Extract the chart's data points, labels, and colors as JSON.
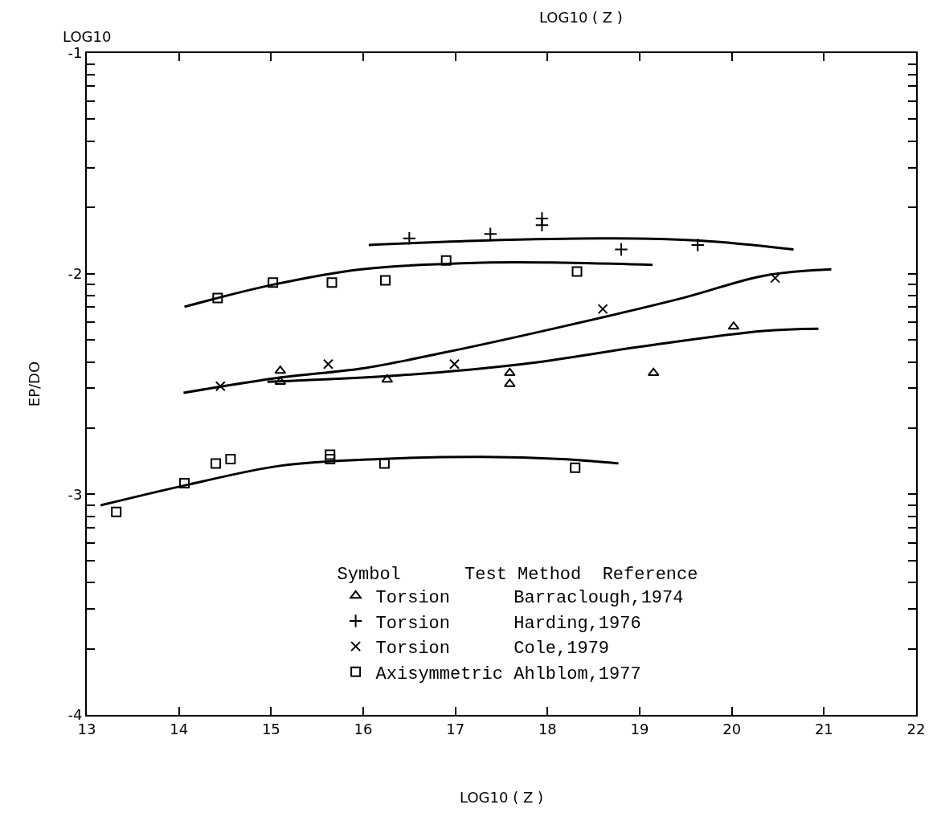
{
  "chart_data": {
    "type": "scatter",
    "title": "LOG10 ( Z )",
    "xlabel": "LOG10 ( Z )",
    "ylabel": "EP/DO",
    "annotations": [
      "LOG10"
    ],
    "legend_title": "Symbol      Test Method  Reference",
    "legend": "bottom right",
    "xlim": [
      13,
      22
    ],
    "xticks": [
      13,
      14,
      15,
      16,
      17,
      18,
      19,
      20,
      21,
      22
    ],
    "ylim": [
      -4,
      -1
    ],
    "yticks": [
      -1,
      {
        "value": -1.05,
        "label": null
      },
      {
        "value": -1.1,
        "label": null
      },
      {
        "value": -1.15,
        "label": null
      },
      {
        "value": -1.22,
        "label": null
      },
      {
        "value": -1.3,
        "label": null
      },
      {
        "value": -1.4,
        "label": null
      },
      {
        "value": -1.52,
        "label": null
      },
      {
        "value": -1.7,
        "label": null
      },
      -2,
      {
        "value": -2.05,
        "label": null
      },
      {
        "value": -2.1,
        "label": null
      },
      {
        "value": -2.15,
        "label": null
      },
      {
        "value": -2.22,
        "label": null
      },
      {
        "value": -2.3,
        "label": null
      },
      {
        "value": -2.4,
        "label": null
      },
      {
        "value": -2.52,
        "label": null
      },
      {
        "value": -2.7,
        "label": null
      },
      -3,
      {
        "value": -3.05,
        "label": null
      },
      {
        "value": -3.1,
        "label": null
      },
      {
        "value": -3.15,
        "label": null
      },
      {
        "value": -3.22,
        "label": null
      },
      {
        "value": -3.3,
        "label": null
      },
      {
        "value": -3.4,
        "label": null
      },
      {
        "value": -3.52,
        "label": null
      },
      {
        "value": -3.7,
        "label": null
      },
      -4
    ],
    "series": [
      {
        "name": "Torsion      Barraclough,1974",
        "color": "#000000",
        "marker": "triangle",
        "x": [
          15.1,
          15.1,
          16.26,
          17.59,
          17.59,
          19.15,
          20.02
        ],
        "values": [
          -2.44,
          -2.49,
          -2.48,
          -2.45,
          -2.5,
          -2.45,
          -2.24
        ]
      },
      {
        "name": "Torsion      Harding,1976",
        "color": "#000000",
        "marker": "cross",
        "x": [
          16.5,
          17.38,
          17.94,
          17.94,
          18.8,
          19.63
        ],
        "values": [
          -1.84,
          -1.82,
          -1.75,
          -1.78,
          -1.89,
          -1.87
        ]
      },
      {
        "name": "Torsion      Cole,1979",
        "color": "#000000",
        "marker": "x",
        "x": [
          14.45,
          15.62,
          16.99,
          18.6,
          20.47
        ],
        "values": [
          -2.51,
          -2.41,
          -2.41,
          -2.16,
          -2.02
        ]
      },
      {
        "name": "Axisymmetric Ahlblom,1977",
        "color": "#000000",
        "marker": "square",
        "x": [
          14.42,
          15.02,
          15.66,
          16.24,
          16.9,
          18.32,
          13.32,
          14.06,
          14.4,
          14.56,
          15.64,
          15.64,
          16.23,
          18.3
        ],
        "values": [
          -2.11,
          -2.04,
          -2.04,
          -2.03,
          -1.94,
          -1.99,
          -3.08,
          -2.95,
          -2.86,
          -2.84,
          -2.82,
          -2.84,
          -2.86,
          -2.88
        ]
      },
      {
        "type": "line",
        "color": "#000000",
        "marker": "none",
        "x": [
          16.06,
          17.29,
          18.6,
          19.65,
          20.67
        ],
        "values": [
          -1.87,
          -1.85,
          -1.84,
          -1.85,
          -1.89
        ]
      },
      {
        "type": "line",
        "color": "#000000",
        "marker": "none",
        "x": [
          14.06,
          15.02,
          15.98,
          17.29,
          18.16,
          19.14
        ],
        "values": [
          -2.15,
          -2.05,
          -1.98,
          -1.95,
          -1.95,
          -1.96
        ]
      },
      {
        "type": "line",
        "color": "#000000",
        "marker": "none",
        "x": [
          14.05,
          15.11,
          15.98,
          16.85,
          18.16,
          19.47,
          20.34,
          21.08
        ],
        "values": [
          -2.54,
          -2.47,
          -2.43,
          -2.36,
          -2.24,
          -2.11,
          -2.01,
          -1.98
        ]
      },
      {
        "type": "line",
        "color": "#000000",
        "marker": "none",
        "x": [
          14.96,
          16.42,
          17.73,
          19.03,
          20.34,
          20.94
        ],
        "values": [
          -2.49,
          -2.46,
          -2.41,
          -2.33,
          -2.26,
          -2.25
        ]
      },
      {
        "type": "line",
        "color": "#000000",
        "marker": "none",
        "x": [
          13.15,
          14.06,
          15.11,
          16.16,
          17.29,
          18.16,
          18.77
        ],
        "values": [
          -3.05,
          -2.96,
          -2.87,
          -2.84,
          -2.83,
          -2.84,
          -2.86
        ]
      }
    ]
  }
}
